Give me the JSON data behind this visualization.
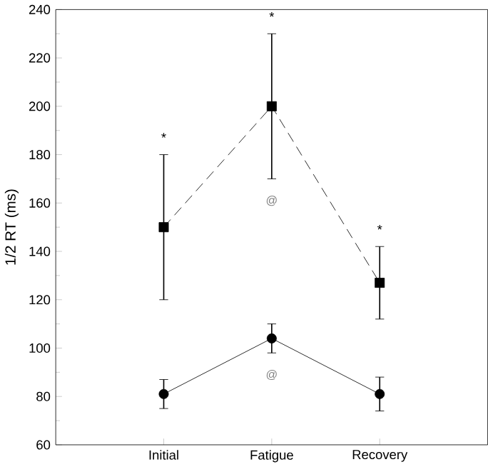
{
  "chart_data": {
    "type": "line",
    "ylabel": "1/2 RT (ms)",
    "categories": [
      "Initial",
      "Fatigue",
      "Recovery"
    ],
    "series": [
      {
        "color": "#000000",
        "values": [
          150,
          200,
          127
        ],
        "errors": [
          30,
          30,
          15
        ],
        "marker": "square",
        "line_style": "dashed"
      },
      {
        "color": "#000000",
        "values": [
          81,
          104,
          81
        ],
        "errors": [
          6,
          6,
          7
        ],
        "marker": "circle",
        "line_style": "solid"
      }
    ],
    "ylim": [
      60,
      240
    ],
    "yticks": [
      60,
      80,
      100,
      120,
      140,
      160,
      180,
      200,
      220,
      240
    ],
    "grid": false,
    "annotations": [
      "*",
      "*",
      "*",
      "@",
      "@"
    ]
  }
}
